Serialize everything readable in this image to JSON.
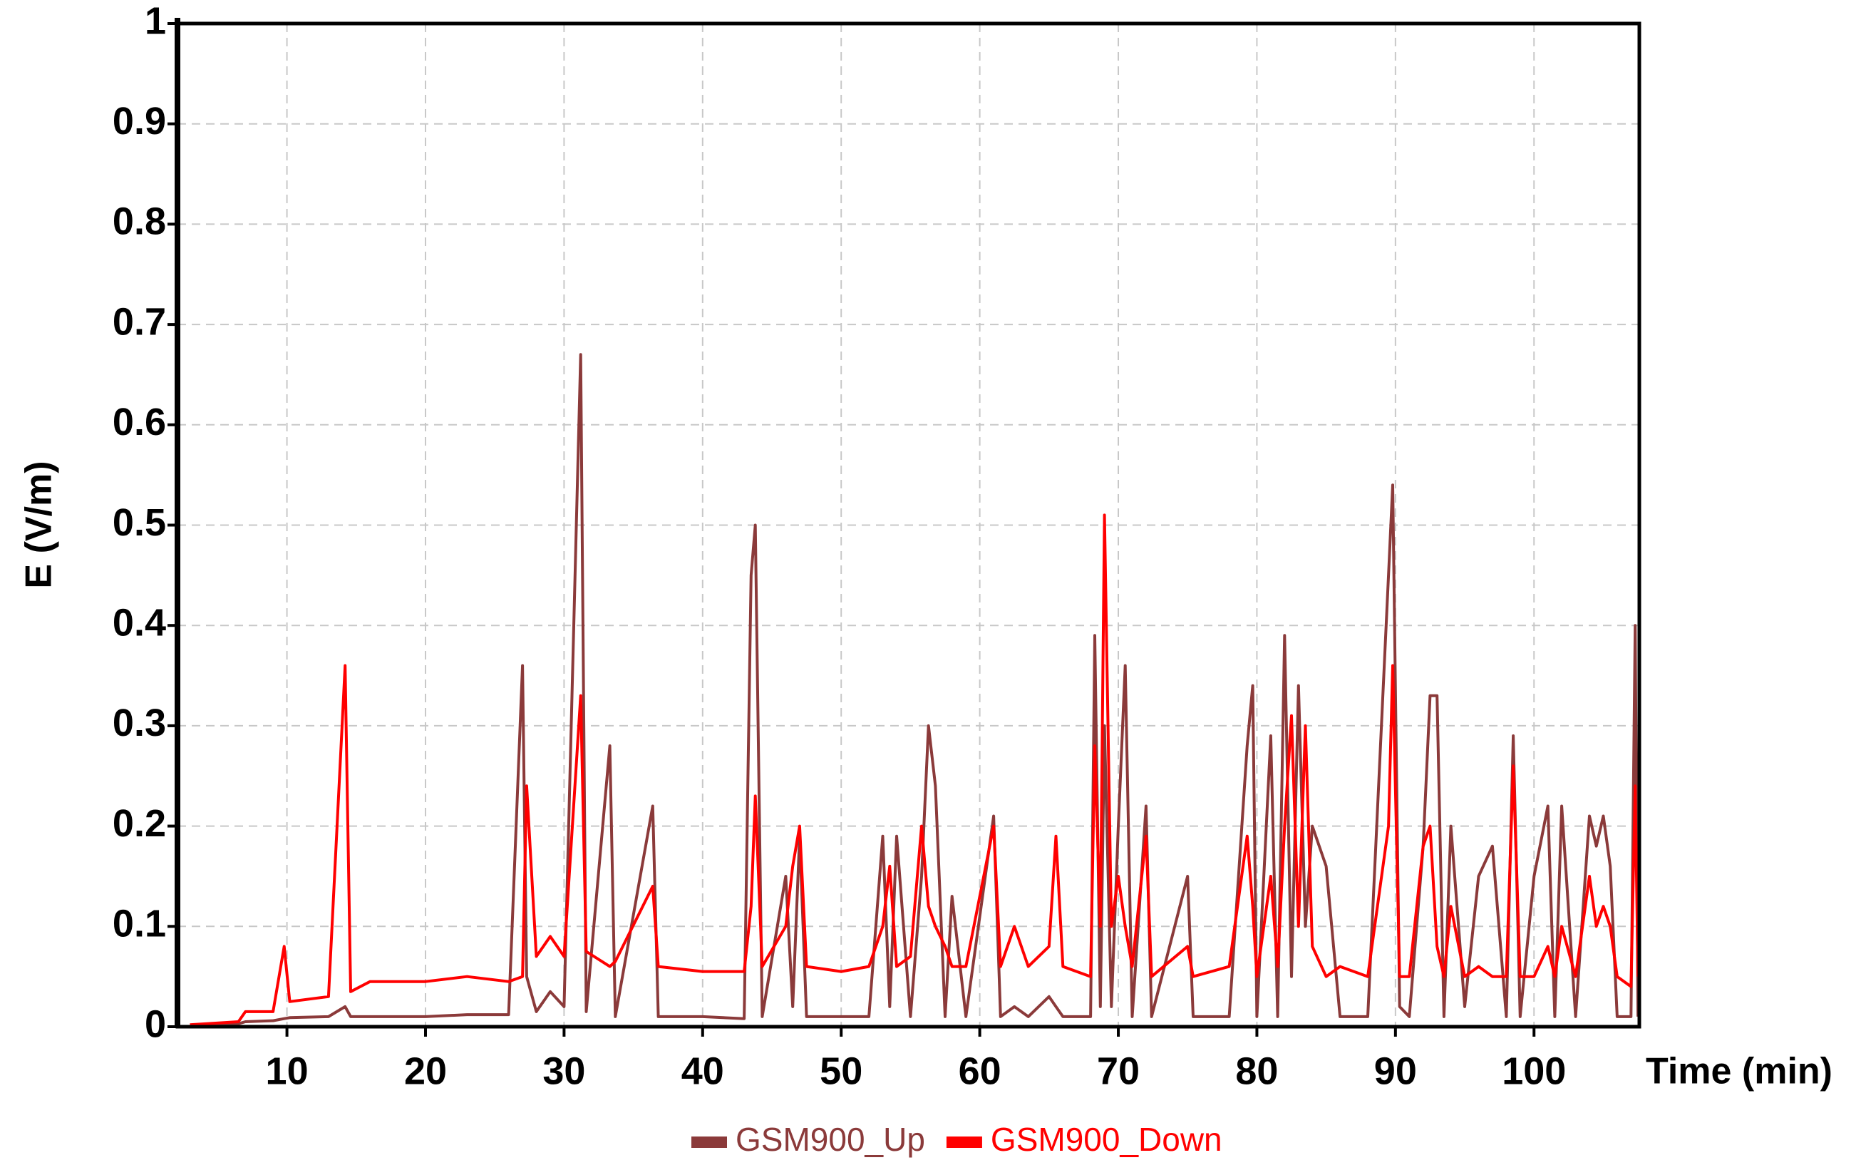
{
  "chart_data": {
    "type": "line",
    "x_label": "Time (min)",
    "y_label": "E (V/m)",
    "x": [
      3,
      6.5,
      7,
      9,
      9.8,
      10.2,
      13,
      14.2,
      14.6,
      16,
      20,
      23,
      26,
      27,
      27.3,
      28,
      29,
      30,
      31.2,
      31.6,
      33.3,
      33.7,
      36.4,
      36.8,
      40,
      43,
      43.5,
      43.8,
      44.3,
      46,
      46.5,
      47,
      47.5,
      50,
      52,
      53,
      53.5,
      54,
      55,
      55.8,
      56.3,
      56.8,
      57.5,
      58,
      59,
      61,
      61.5,
      62.5,
      63.5,
      65,
      65.5,
      66,
      68,
      68.3,
      68.7,
      69,
      69.5,
      70,
      70.5,
      71,
      72,
      72.4,
      75,
      75.4,
      78,
      79.3,
      79.7,
      80,
      81,
      81.5,
      82,
      82.5,
      83,
      83.5,
      84,
      85,
      86,
      88,
      89.5,
      89.8,
      90.3,
      91,
      92,
      92.5,
      93,
      93.5,
      94,
      95,
      96,
      97,
      98,
      98.5,
      99,
      100,
      101,
      101.5,
      102,
      103,
      104,
      104.5,
      105,
      105.5,
      106,
      107,
      107.3,
      107.5
    ],
    "series": [
      {
        "name": "GSM900_Up",
        "color": "#8b3a3a",
        "values": [
          0,
          0.003,
          0.005,
          0.006,
          0.008,
          0.009,
          0.01,
          0.02,
          0.01,
          0.01,
          0.01,
          0.012,
          0.012,
          0.36,
          0.05,
          0.015,
          0.035,
          0.02,
          0.67,
          0.015,
          0.28,
          0.01,
          0.22,
          0.01,
          0.01,
          0.008,
          0.45,
          0.5,
          0.01,
          0.15,
          0.02,
          0.19,
          0.01,
          0.01,
          0.01,
          0.19,
          0.02,
          0.19,
          0.01,
          0.15,
          0.3,
          0.24,
          0.01,
          0.13,
          0.01,
          0.21,
          0.01,
          0.02,
          0.01,
          0.03,
          0.02,
          0.01,
          0.01,
          0.39,
          0.02,
          0.3,
          0.02,
          0.2,
          0.36,
          0.01,
          0.22,
          0.01,
          0.15,
          0.01,
          0.01,
          0.28,
          0.34,
          0.01,
          0.29,
          0.01,
          0.39,
          0.05,
          0.34,
          0.1,
          0.2,
          0.16,
          0.01,
          0.01,
          0.45,
          0.54,
          0.02,
          0.01,
          0.18,
          0.33,
          0.33,
          0.01,
          0.2,
          0.02,
          0.15,
          0.18,
          0.01,
          0.29,
          0.01,
          0.15,
          0.22,
          0.01,
          0.22,
          0.01,
          0.21,
          0.18,
          0.21,
          0.16,
          0.01,
          0.01,
          0.4,
          0.01
        ]
      },
      {
        "name": "GSM900_Down",
        "color": "#ff0000",
        "values": [
          0.002,
          0.005,
          0.015,
          0.015,
          0.08,
          0.025,
          0.03,
          0.36,
          0.035,
          0.045,
          0.045,
          0.05,
          0.045,
          0.05,
          0.24,
          0.07,
          0.09,
          0.07,
          0.33,
          0.075,
          0.06,
          0.065,
          0.14,
          0.06,
          0.055,
          0.055,
          0.12,
          0.23,
          0.06,
          0.1,
          0.16,
          0.2,
          0.06,
          0.055,
          0.06,
          0.1,
          0.16,
          0.06,
          0.07,
          0.2,
          0.12,
          0.1,
          0.08,
          0.06,
          0.06,
          0.2,
          0.06,
          0.1,
          0.06,
          0.08,
          0.19,
          0.06,
          0.05,
          0.28,
          0.1,
          0.51,
          0.1,
          0.15,
          0.1,
          0.06,
          0.19,
          0.05,
          0.08,
          0.05,
          0.06,
          0.19,
          0.12,
          0.05,
          0.15,
          0.06,
          0.2,
          0.31,
          0.1,
          0.3,
          0.08,
          0.05,
          0.06,
          0.05,
          0.2,
          0.36,
          0.05,
          0.05,
          0.18,
          0.2,
          0.08,
          0.05,
          0.12,
          0.05,
          0.06,
          0.05,
          0.05,
          0.26,
          0.05,
          0.05,
          0.08,
          0.05,
          0.1,
          0.05,
          0.15,
          0.1,
          0.12,
          0.1,
          0.05,
          0.04,
          0.24,
          0.05
        ]
      }
    ],
    "xlim": [
      2.1,
      107.6
    ],
    "xticks": [
      10,
      20,
      30,
      40,
      50,
      60,
      70,
      80,
      90,
      100
    ],
    "ylim": [
      0,
      1
    ],
    "yticks": [
      0,
      0.1,
      0.2,
      0.3,
      0.4,
      0.5,
      0.6,
      0.7,
      0.8,
      0.9,
      1
    ],
    "grid": true,
    "legend": "bottom"
  }
}
